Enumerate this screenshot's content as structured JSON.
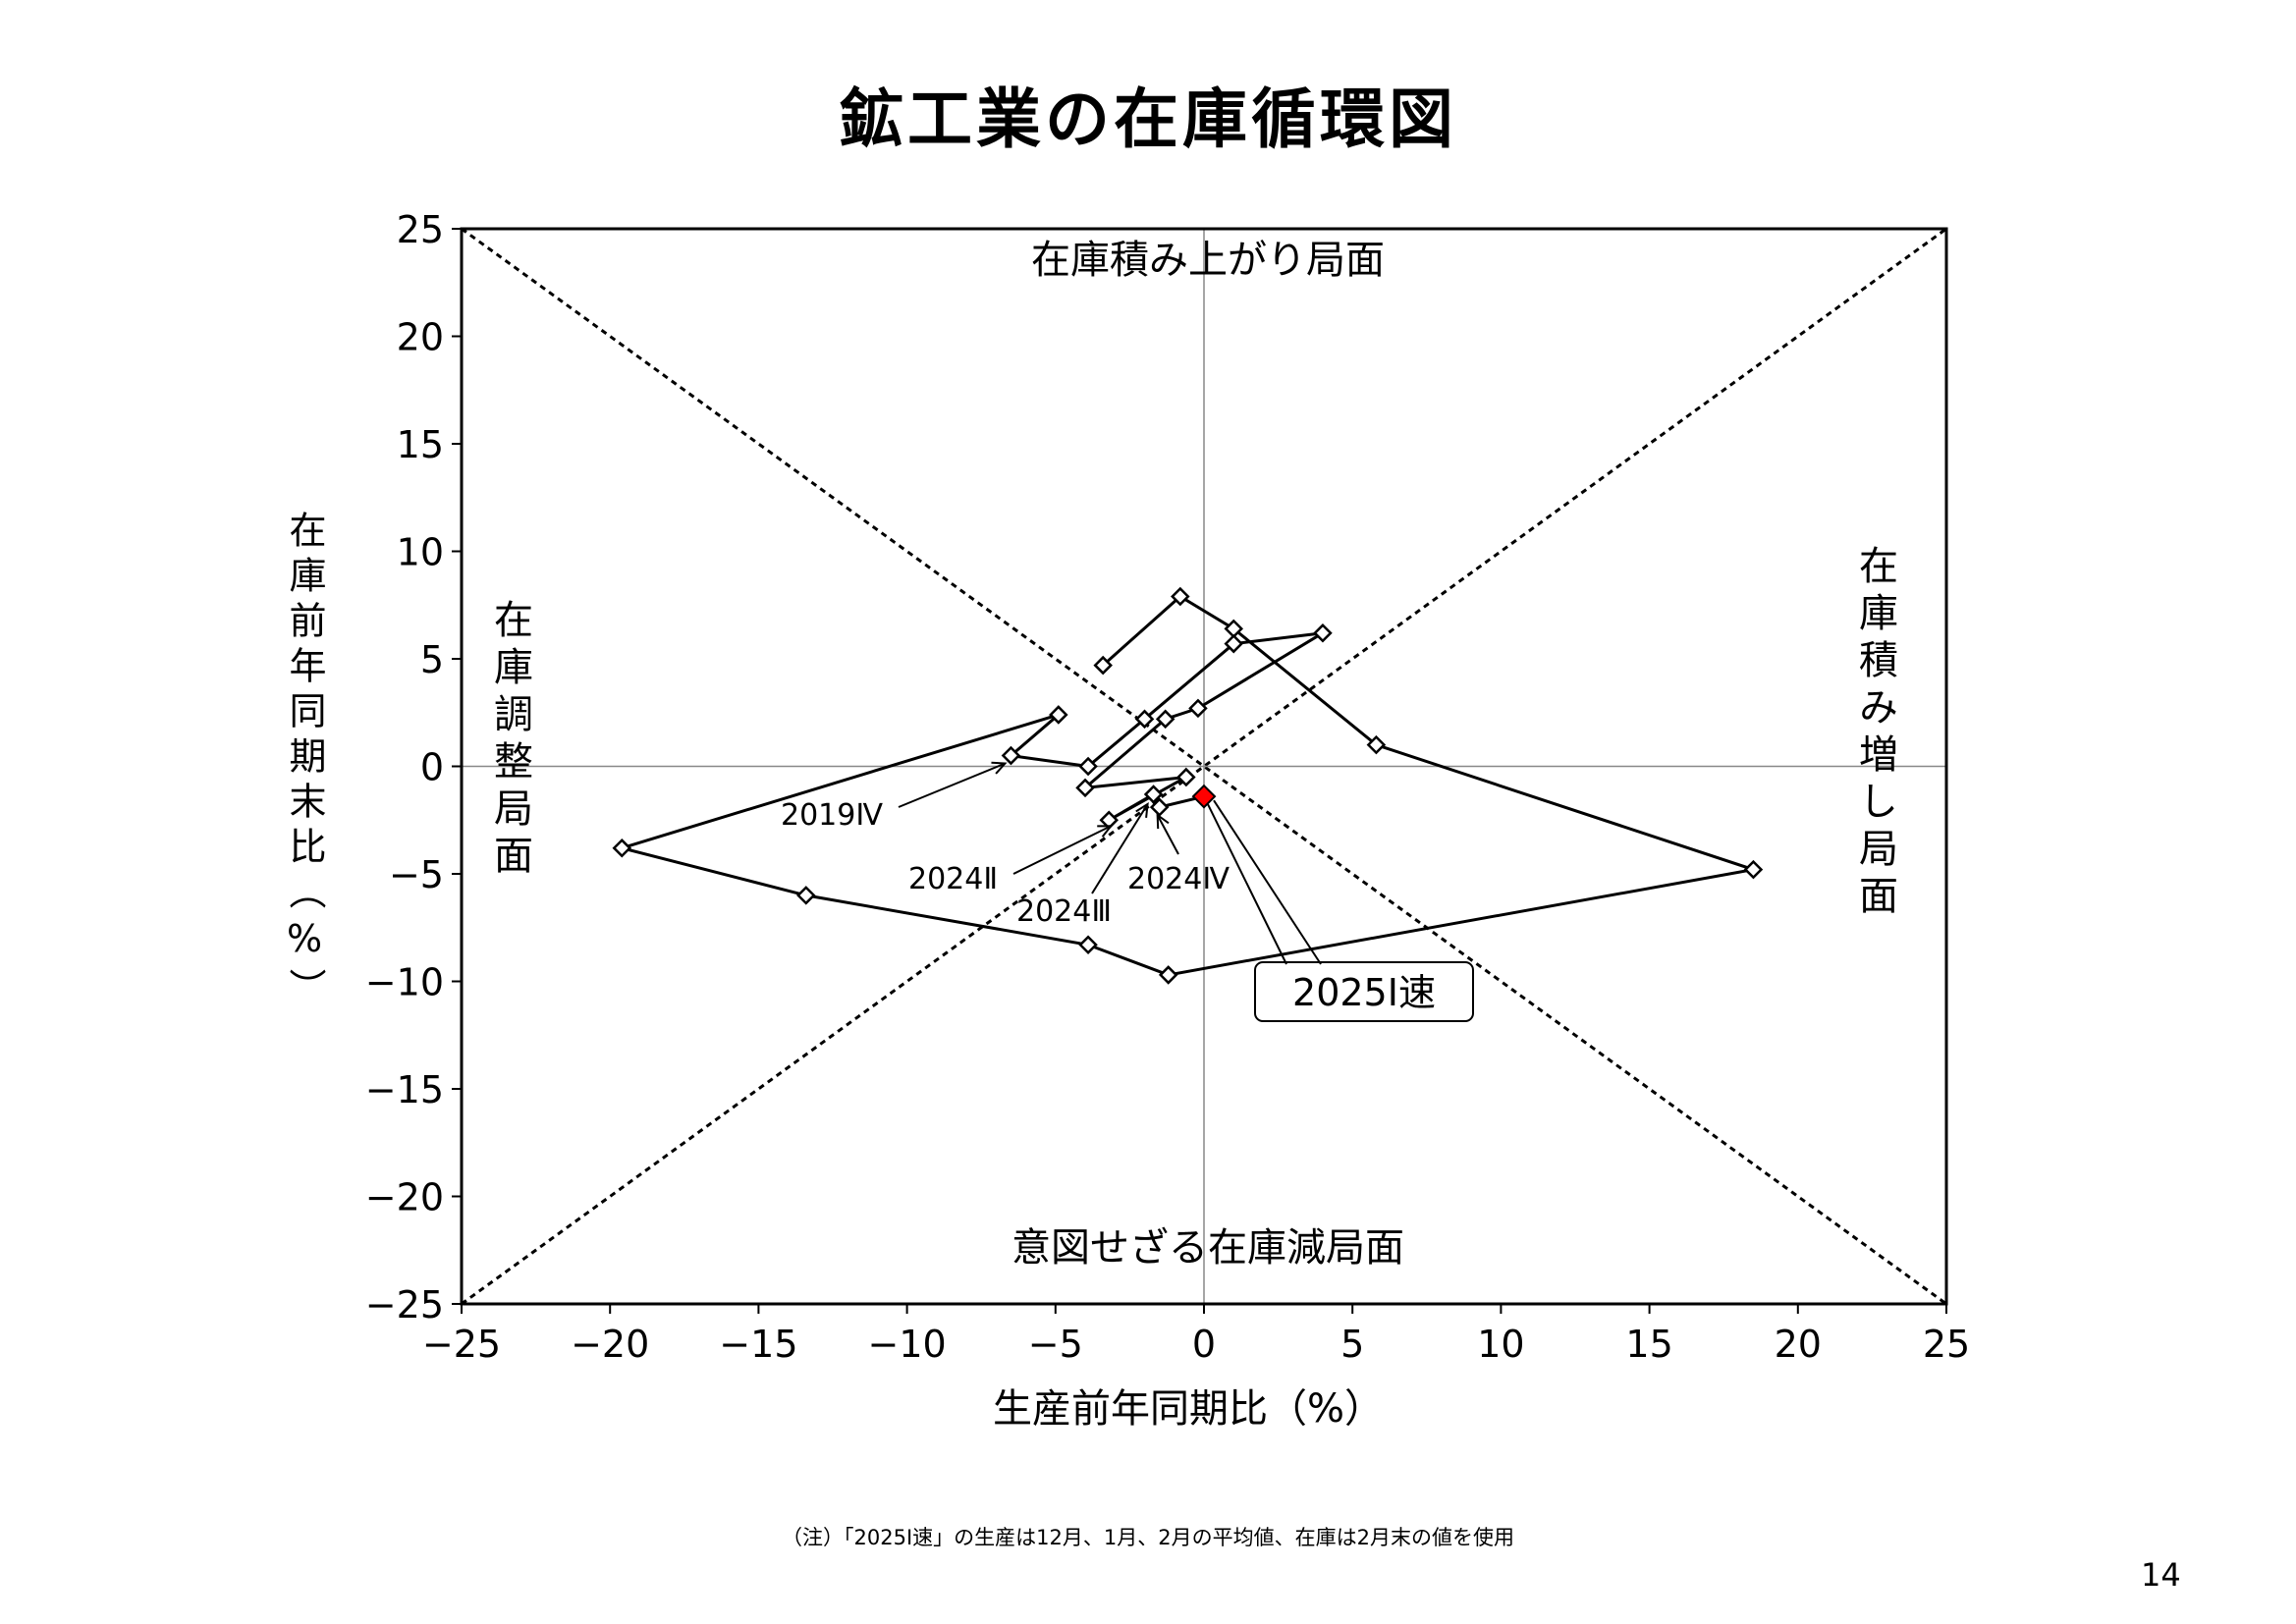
{
  "title": "鉱工業の在庫循環図",
  "note": "（注）「2025Ⅰ速」の生産は12月、1月、2月の平均値、在庫は2月末の値を使用",
  "page_number": "14",
  "colors": {
    "line": "#000000",
    "highlight": "#ff0000",
    "axis": "#000000",
    "grid": "#888888"
  },
  "chart_data": {
    "type": "scatter",
    "xlabel": "生産前年同期比（%）",
    "ylabel": "在庫前年同期末比（%）",
    "xlim": [
      -25,
      25
    ],
    "ylim": [
      -25,
      25
    ],
    "x_ticks": [
      "−25",
      "−20",
      "−15",
      "−10",
      "−5",
      "0",
      "5",
      "10",
      "15",
      "20",
      "25"
    ],
    "y_ticks": [
      "25",
      "20",
      "15",
      "10",
      "5",
      "0",
      "−5",
      "−10",
      "−15",
      "−20",
      "−25"
    ],
    "regions": {
      "top": "在庫積み上がり局面",
      "bottom": "意図せざる在庫減局面",
      "left": "在庫調整局面",
      "right": "在庫積み増し局面"
    },
    "reference_lines": [
      "y = x",
      "y = -x"
    ],
    "series": [
      {
        "points": [
          {
            "x": -3.4,
            "y": 4.7
          },
          {
            "x": -0.8,
            "y": 7.9
          },
          {
            "x": 1.0,
            "y": 6.4
          },
          {
            "x": 5.8,
            "y": 1.0
          },
          {
            "x": 18.5,
            "y": -4.8
          },
          {
            "x": -1.2,
            "y": -9.7
          },
          {
            "x": -3.9,
            "y": -8.3
          },
          {
            "x": -13.4,
            "y": -6.0
          },
          {
            "x": -19.6,
            "y": -3.8
          },
          {
            "x": -4.9,
            "y": 2.4
          },
          {
            "x": -6.5,
            "y": 0.5
          },
          {
            "x": -3.9,
            "y": 0.0
          },
          {
            "x": -2.0,
            "y": 2.2
          },
          {
            "x": 1.0,
            "y": 5.7
          },
          {
            "x": 4.0,
            "y": 6.2
          },
          {
            "x": -0.2,
            "y": 2.7
          },
          {
            "x": -1.3,
            "y": 2.2
          },
          {
            "x": -4.0,
            "y": -1.0
          },
          {
            "x": -0.6,
            "y": -0.5
          },
          {
            "x": -3.2,
            "y": -2.5
          },
          {
            "x": -1.7,
            "y": -1.3
          },
          {
            "x": -1.5,
            "y": -1.9
          }
        ]
      }
    ],
    "highlight": {
      "x": 0.0,
      "y": -1.4
    },
    "annotations": [
      {
        "text": "2019Ⅳ",
        "x": -6.5,
        "y": 0.5
      },
      {
        "text": "2024Ⅱ",
        "x": -3.2,
        "y": -2.5
      },
      {
        "text": "2024Ⅲ",
        "x": -1.7,
        "y": -1.3
      },
      {
        "text": "2024Ⅳ",
        "x": -1.5,
        "y": -1.9
      },
      {
        "text": "2025Ⅰ速",
        "x": 0.0,
        "y": -1.4
      }
    ]
  }
}
